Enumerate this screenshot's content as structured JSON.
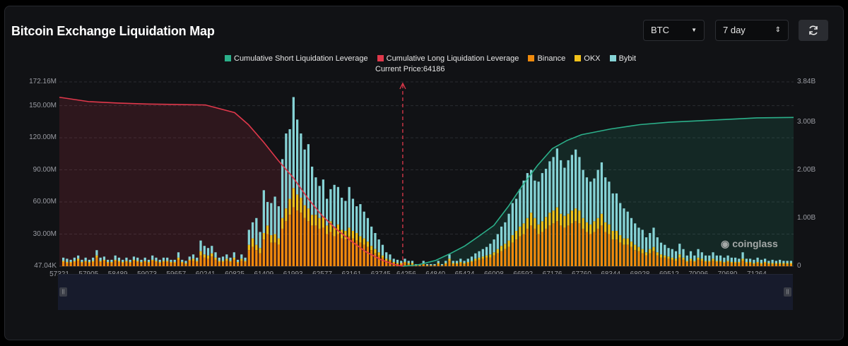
{
  "title": "Bitcoin Exchange Liquidation Map",
  "controls": {
    "coin": "BTC",
    "range": "7 day"
  },
  "watermark": "coinglass",
  "colors": {
    "short_cum": "#2bb08a",
    "long_cum": "#e0384b",
    "binance": "#f08a0c",
    "okx": "#f2c21a",
    "bybit": "#86d3d6"
  },
  "chart_data": {
    "type": "bar",
    "title": "Bitcoin Exchange Liquidation Map",
    "legend": [
      "Cumulative Short Liquidation Leverage",
      "Cumulative Long Liquidation Leverage",
      "Binance",
      "OKX",
      "Bybit"
    ],
    "legend_position": "top-center",
    "annotation": "Current Price:64186",
    "current_price": 64186,
    "x_range": [
      57321,
      72000
    ],
    "x_ticks": [
      "57321",
      "57905",
      "58489",
      "59073",
      "59657",
      "60241",
      "60825",
      "61409",
      "61993",
      "62577",
      "63161",
      "63745",
      "64256",
      "64840",
      "65424",
      "66008",
      "66592",
      "67176",
      "67760",
      "68344",
      "68928",
      "69512",
      "70096",
      "70680",
      "71264"
    ],
    "y_left_ticks": [
      "47.04K",
      "30.00M",
      "60.00M",
      "90.00M",
      "120.00M",
      "150.00M",
      "172.16M"
    ],
    "y_right_ticks": [
      "0",
      "1.00B",
      "2.00B",
      "3.00B",
      "3.84B"
    ],
    "y_left_range": [
      0,
      172.16
    ],
    "y_left_unit": "M",
    "y_right_range": [
      0,
      3.84
    ],
    "y_right_unit": "B",
    "series": [
      {
        "name": "Cumulative Long Liquidation Leverage",
        "type": "area",
        "x": [
          57321,
          57905,
          58489,
          59073,
          59657,
          60241,
          60825,
          61100,
          61409,
          61700,
          61993,
          62300,
          62577,
          62850,
          63161,
          63450,
          63745,
          64000,
          64186
        ],
        "y": [
          3.52,
          3.43,
          3.4,
          3.38,
          3.37,
          3.36,
          3.2,
          2.95,
          2.58,
          2.2,
          1.85,
          1.4,
          1.05,
          0.78,
          0.52,
          0.3,
          0.14,
          0.04,
          0.0
        ]
      },
      {
        "name": "Cumulative Short Liquidation Leverage",
        "type": "area",
        "x": [
          64186,
          64500,
          64840,
          65130,
          65424,
          65700,
          66008,
          66300,
          66592,
          66880,
          67176,
          67470,
          67760,
          68344,
          68928,
          69512,
          70096,
          70680,
          71264,
          72000
        ],
        "y": [
          0.0,
          0.03,
          0.12,
          0.26,
          0.42,
          0.62,
          0.85,
          1.25,
          1.7,
          2.1,
          2.45,
          2.62,
          2.74,
          2.86,
          2.95,
          3.0,
          3.03,
          3.06,
          3.09,
          3.1
        ]
      },
      {
        "name": "Binance",
        "unit": "M",
        "values": [
          4,
          3,
          3,
          4,
          5,
          3,
          4,
          3,
          4,
          8,
          4,
          5,
          3,
          3,
          5,
          4,
          3,
          4,
          3,
          5,
          4,
          3,
          4,
          3,
          5,
          4,
          3,
          4,
          4,
          3,
          3,
          6,
          3,
          2,
          5,
          5,
          4,
          10,
          8,
          7,
          9,
          6,
          4,
          4,
          5,
          4,
          6,
          3,
          5,
          4,
          15,
          18,
          15,
          12,
          25,
          30,
          22,
          22,
          20,
          35,
          42,
          48,
          55,
          52,
          50,
          45,
          42,
          38,
          38,
          35,
          36,
          30,
          32,
          28,
          30,
          26,
          25,
          28,
          26,
          24,
          22,
          20,
          18,
          15,
          12,
          10,
          8,
          5,
          5,
          3,
          2,
          2,
          3,
          2,
          2,
          1,
          1,
          2,
          1,
          1,
          1,
          2,
          1,
          2,
          5,
          2,
          2,
          3,
          2,
          3,
          4,
          5,
          6,
          7,
          8,
          8,
          10,
          12,
          14,
          16,
          18,
          22,
          25,
          28,
          30,
          35,
          38,
          35,
          30,
          32,
          35,
          38,
          40,
          42,
          38,
          36,
          38,
          40,
          42,
          40,
          35,
          32,
          30,
          32,
          35,
          38,
          32,
          30,
          25,
          25,
          22,
          20,
          20,
          18,
          15,
          14,
          12,
          10,
          12,
          14,
          10,
          8,
          8,
          7,
          6,
          5,
          8,
          6,
          4,
          5,
          4,
          6,
          5,
          4,
          4,
          5,
          4,
          4,
          3,
          4,
          3,
          3,
          3,
          5,
          3,
          3,
          2,
          3,
          2,
          3,
          2,
          2,
          2,
          2,
          2,
          2,
          2
        ]
      },
      {
        "name": "OKX",
        "unit": "M",
        "values": [
          1,
          1,
          1,
          1,
          2,
          1,
          1,
          1,
          1,
          2,
          1,
          1,
          1,
          1,
          1,
          1,
          1,
          1,
          1,
          1,
          1,
          1,
          1,
          1,
          1,
          1,
          1,
          1,
          1,
          1,
          1,
          2,
          1,
          1,
          1,
          2,
          1,
          4,
          3,
          3,
          3,
          2,
          1,
          1,
          2,
          1,
          2,
          1,
          2,
          1,
          5,
          8,
          5,
          5,
          6,
          8,
          7,
          8,
          6,
          10,
          12,
          15,
          18,
          15,
          14,
          12,
          12,
          10,
          10,
          10,
          10,
          8,
          10,
          8,
          9,
          8,
          8,
          8,
          7,
          7,
          6,
          6,
          5,
          4,
          4,
          3,
          2,
          2,
          1,
          1,
          1,
          1,
          1,
          1,
          1,
          0,
          0,
          1,
          0,
          0,
          0,
          1,
          0,
          1,
          2,
          1,
          1,
          1,
          1,
          1,
          1,
          2,
          2,
          2,
          2,
          3,
          3,
          4,
          5,
          5,
          6,
          7,
          8,
          9,
          10,
          10,
          12,
          10,
          9,
          10,
          11,
          12,
          12,
          13,
          11,
          11,
          11,
          12,
          12,
          12,
          10,
          9,
          9,
          10,
          10,
          11,
          9,
          9,
          8,
          8,
          7,
          6,
          6,
          5,
          5,
          4,
          4,
          3,
          4,
          4,
          3,
          3,
          2,
          2,
          2,
          2,
          3,
          2,
          1,
          2,
          1,
          2,
          2,
          1,
          1,
          2,
          1,
          1,
          1,
          1,
          1,
          1,
          1,
          2,
          1,
          1,
          1,
          1,
          1,
          1,
          1,
          1,
          1,
          1,
          1,
          1,
          1
        ]
      },
      {
        "name": "Bybit",
        "unit": "M",
        "values": [
          3,
          3,
          2,
          3,
          3,
          2,
          3,
          2,
          3,
          5,
          3,
          3,
          2,
          2,
          4,
          3,
          2,
          3,
          2,
          3,
          3,
          2,
          3,
          2,
          4,
          3,
          2,
          3,
          3,
          2,
          2,
          5,
          2,
          2,
          3,
          4,
          3,
          10,
          8,
          7,
          7,
          5,
          3,
          4,
          4,
          3,
          5,
          2,
          4,
          3,
          14,
          15,
          25,
          15,
          40,
          22,
          30,
          35,
          30,
          55,
          70,
          65,
          85,
          70,
          60,
          52,
          60,
          45,
          35,
          30,
          35,
          25,
          30,
          40,
          35,
          30,
          28,
          38,
          30,
          25,
          30,
          25,
          22,
          18,
          15,
          12,
          10,
          6,
          5,
          3,
          3,
          2,
          3,
          2,
          2,
          1,
          1,
          2,
          1,
          1,
          1,
          2,
          1,
          2,
          4,
          2,
          2,
          3,
          2,
          3,
          4,
          5,
          6,
          7,
          8,
          10,
          12,
          14,
          18,
          20,
          25,
          30,
          30,
          35,
          40,
          42,
          40,
          35,
          40,
          45,
          45,
          48,
          50,
          55,
          50,
          45,
          50,
          52,
          55,
          50,
          45,
          42,
          40,
          40,
          45,
          48,
          42,
          40,
          35,
          35,
          30,
          28,
          25,
          22,
          20,
          18,
          18,
          14,
          15,
          18,
          14,
          11,
          10,
          8,
          8,
          7,
          10,
          8,
          5,
          7,
          5,
          8,
          6,
          5,
          5,
          6,
          5,
          5,
          4,
          5,
          4,
          4,
          3,
          6,
          3,
          3,
          3,
          4,
          3,
          3,
          2,
          3,
          2,
          3,
          2,
          2,
          2
        ]
      }
    ]
  }
}
